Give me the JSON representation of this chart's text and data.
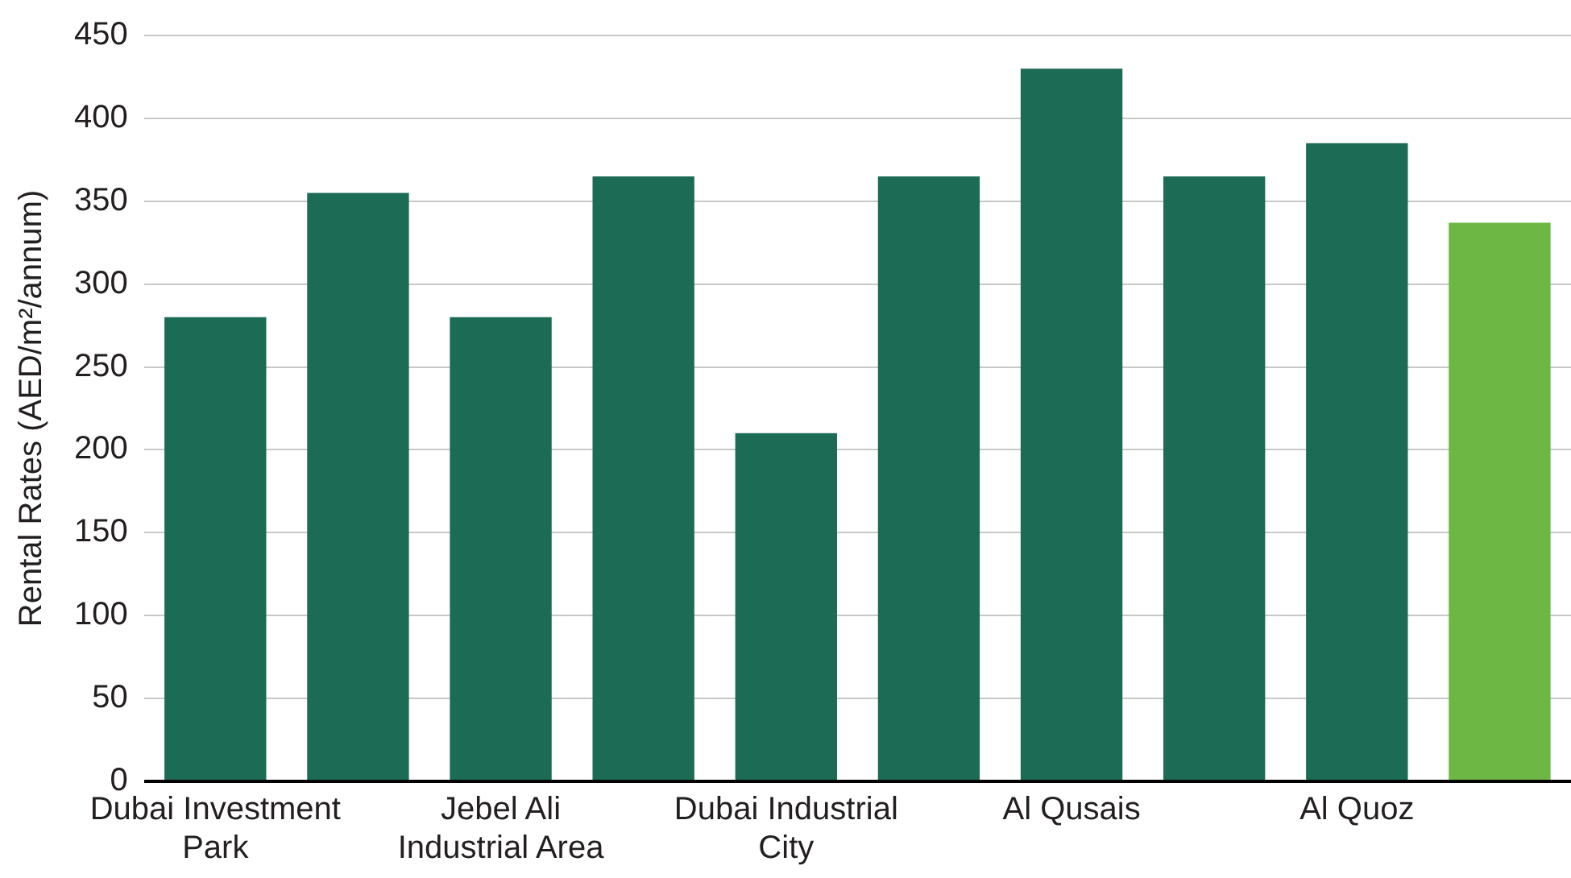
{
  "chart_data": {
    "type": "bar",
    "ylabel": "Rental Rates (AED/m²/annum)",
    "categories": [
      "Dubai Investment Park",
      null,
      "Jebel Ali Industrial Area",
      null,
      "Dubai Industrial City",
      null,
      "Al Qusais",
      null,
      "Al Quoz",
      null
    ],
    "values": [
      280,
      355,
      280,
      365,
      210,
      365,
      430,
      365,
      385,
      337
    ],
    "colors": [
      "#1c6b55",
      "#1c6b55",
      "#1c6b55",
      "#1c6b55",
      "#1c6b55",
      "#1c6b55",
      "#1c6b55",
      "#1c6b55",
      "#1c6b55",
      "#6db844"
    ],
    "ylim": [
      0,
      450
    ],
    "yticks": [
      0,
      50,
      100,
      150,
      200,
      250,
      300,
      350,
      400,
      450
    ],
    "grid": "y",
    "legend": false
  }
}
